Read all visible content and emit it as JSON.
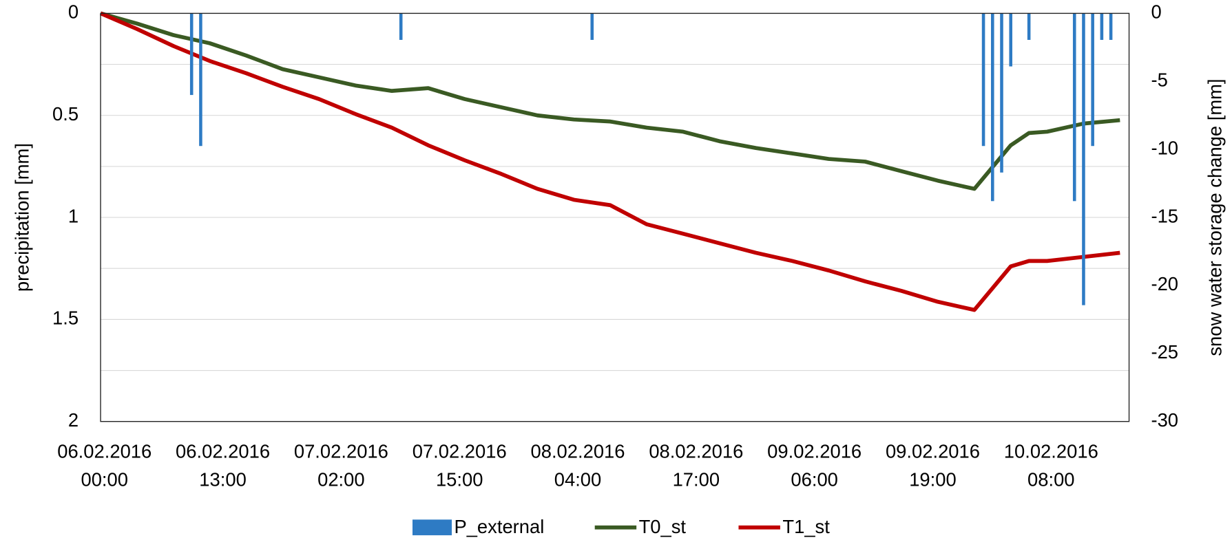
{
  "chart_data": {
    "type": "combo",
    "y_label": "precipitation [mm]",
    "y2_label": "snow water storage change [mm]",
    "xlim": [
      "06.02.2016 00:00",
      "10.02.2016 17:00"
    ],
    "xticks": [
      "06.02.2016 00:00",
      "06.02.2016 13:00",
      "07.02.2016 02:00",
      "07.02.2016 15:00",
      "08.02.2016 04:00",
      "08.02.2016 17:00",
      "09.02.2016 06:00",
      "09.02.2016 19:00",
      "10.02.2016 08:00"
    ],
    "ylim": [
      0,
      2
    ],
    "y_inverted": true,
    "yticks": [
      0,
      0.5,
      1,
      1.5,
      2
    ],
    "yminorticks": [
      0.25,
      0.75,
      1.25,
      1.75
    ],
    "y2lim": [
      -30,
      0
    ],
    "y2ticks": [
      0,
      -5,
      -10,
      -15,
      -20,
      -25,
      -30
    ],
    "grid": true,
    "legend": "bottom",
    "series": [
      {
        "name": "P_external",
        "type": "bar",
        "color": "#2e7bc4",
        "x": [
          "06.02.2016 10:00",
          "06.02.2016 11:00",
          "07.02.2016 09:00",
          "08.02.2016 06:00",
          "10.02.2016 01:00",
          "10.02.2016 02:00",
          "10.02.2016 03:00",
          "10.02.2016 04:00",
          "10.02.2016 06:00",
          "10.02.2016 11:00",
          "10.02.2016 12:00",
          "10.02.2016 13:00",
          "10.02.2016 14:00",
          "10.02.2016 15:00"
        ],
        "values": [
          0.4,
          0.65,
          0.13,
          0.13,
          0.65,
          0.92,
          0.78,
          0.26,
          0.13,
          0.92,
          1.43,
          0.65,
          0.13,
          0.13
        ]
      },
      {
        "name": "T0_st",
        "type": "line",
        "axis": "y2",
        "color": "#3a5a23",
        "x": [
          "06.02.2016 00:00",
          "06.02.2016 04:00",
          "06.02.2016 08:00",
          "06.02.2016 12:00",
          "06.02.2016 16:00",
          "06.02.2016 20:00",
          "07.02.2016 00:00",
          "07.02.2016 04:00",
          "07.02.2016 08:00",
          "07.02.2016 12:00",
          "07.02.2016 16:00",
          "07.02.2016 20:00",
          "08.02.2016 00:00",
          "08.02.2016 04:00",
          "08.02.2016 08:00",
          "08.02.2016 12:00",
          "08.02.2016 16:00",
          "08.02.2016 20:00",
          "09.02.2016 00:00",
          "09.02.2016 04:00",
          "09.02.2016 08:00",
          "09.02.2016 12:00",
          "09.02.2016 16:00",
          "09.02.2016 20:00",
          "10.02.2016 00:00",
          "10.02.2016 04:00",
          "10.02.2016 06:00",
          "10.02.2016 08:00",
          "10.02.2016 12:00",
          "10.02.2016 16:00"
        ],
        "values": [
          0,
          -0.75,
          -1.6,
          -2.2,
          -3.1,
          -4.1,
          -4.7,
          -5.3,
          -5.7,
          -5.5,
          -6.3,
          -6.9,
          -7.5,
          -7.8,
          -7.95,
          -8.4,
          -8.7,
          -9.4,
          -9.9,
          -10.3,
          -10.7,
          -10.9,
          -11.6,
          -12.3,
          -12.9,
          -9.7,
          -8.8,
          -8.7,
          -8.1,
          -7.85
        ]
      },
      {
        "name": "T1_st",
        "type": "line",
        "axis": "y2",
        "color": "#c00000",
        "x": [
          "06.02.2016 00:00",
          "06.02.2016 04:00",
          "06.02.2016 08:00",
          "06.02.2016 12:00",
          "06.02.2016 16:00",
          "06.02.2016 20:00",
          "07.02.2016 00:00",
          "07.02.2016 04:00",
          "07.02.2016 08:00",
          "07.02.2016 12:00",
          "07.02.2016 16:00",
          "07.02.2016 20:00",
          "08.02.2016 00:00",
          "08.02.2016 04:00",
          "08.02.2016 08:00",
          "08.02.2016 12:00",
          "08.02.2016 16:00",
          "08.02.2016 20:00",
          "09.02.2016 00:00",
          "09.02.2016 04:00",
          "09.02.2016 08:00",
          "09.02.2016 12:00",
          "09.02.2016 16:00",
          "09.02.2016 20:00",
          "10.02.2016 00:00",
          "10.02.2016 04:00",
          "10.02.2016 06:00",
          "10.02.2016 08:00",
          "10.02.2016 12:00",
          "10.02.2016 16:00"
        ],
        "values": [
          0,
          -1.15,
          -2.4,
          -3.5,
          -4.4,
          -5.4,
          -6.3,
          -7.4,
          -8.4,
          -9.7,
          -10.8,
          -11.8,
          -12.9,
          -13.7,
          -14.1,
          -15.5,
          -16.2,
          -16.9,
          -17.6,
          -18.2,
          -18.9,
          -19.7,
          -20.4,
          -21.2,
          -21.8,
          -18.6,
          -18.2,
          -18.2,
          -17.9,
          -17.6
        ]
      }
    ]
  }
}
